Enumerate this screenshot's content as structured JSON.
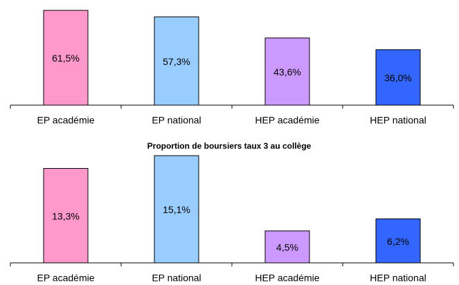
{
  "chart_data": [
    {
      "type": "bar",
      "categories": [
        "EP académie",
        "EP national",
        "HEP académie",
        "HEP national"
      ],
      "values": [
        61.5,
        57.3,
        43.6,
        36.0
      ],
      "value_labels": [
        "61,5%",
        "57,3%",
        "43,6%",
        "36,0%"
      ],
      "colors": [
        "#ff99cc",
        "#99ccff",
        "#cc99ff",
        "#3366ff"
      ]
    },
    {
      "type": "bar",
      "title": "Proportion de boursiers taux 3 au collège",
      "categories": [
        "EP académie",
        "EP national",
        "HEP académie",
        "HEP national"
      ],
      "values": [
        13.3,
        15.1,
        4.5,
        6.2
      ],
      "value_labels": [
        "13,3%",
        "15,1%",
        "4,5%",
        "6,2%"
      ],
      "colors": [
        "#ff99cc",
        "#99ccff",
        "#cc99ff",
        "#3366ff"
      ]
    }
  ]
}
